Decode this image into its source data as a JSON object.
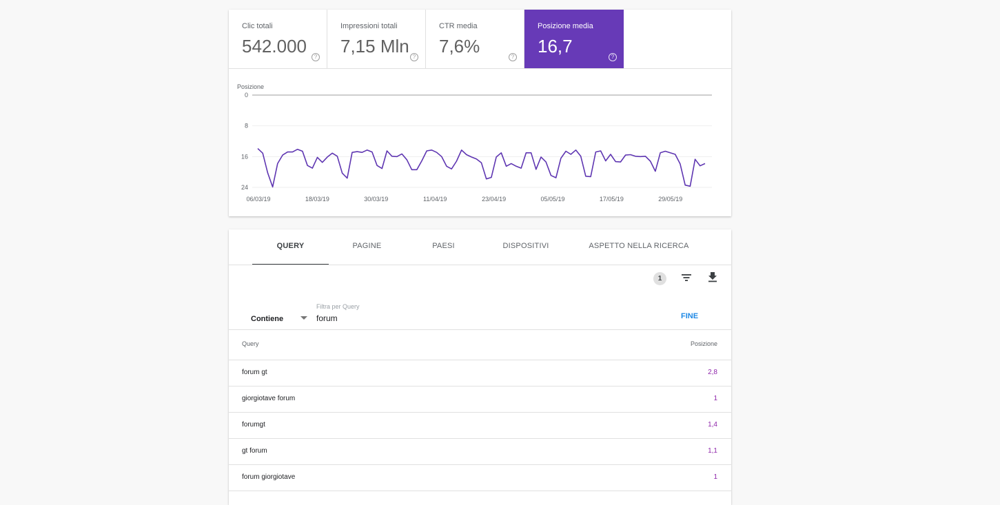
{
  "metrics": [
    {
      "label": "Clic totali",
      "value": "542.000",
      "help": "?"
    },
    {
      "label": "Impressioni totali",
      "value": "7,15 Mln",
      "help": "?"
    },
    {
      "label": "CTR media",
      "value": "7,6%",
      "help": "?"
    },
    {
      "label": "Posizione media",
      "value": "16,7",
      "help": "?"
    }
  ],
  "chart_data": {
    "type": "line",
    "title": "",
    "xlabel": "",
    "ylabel": "Posizione",
    "ylim": [
      0,
      24
    ],
    "y_inverted": true,
    "y_ticks": [
      "0",
      "8",
      "16",
      "24"
    ],
    "x_tick_labels": [
      "06/03/19",
      "18/03/19",
      "30/03/19",
      "11/04/19",
      "23/04/19",
      "05/05/19",
      "17/05/19",
      "29/05/19"
    ],
    "grid": true,
    "color": "#5e35b1",
    "series": [
      {
        "values": [
          13.9,
          15.1,
          20.2,
          23.9,
          17.8,
          15.6,
          14.8,
          14.8,
          14.1,
          14.6,
          18.3,
          19.0,
          16.2,
          17.5,
          16.1,
          15.1,
          15.9,
          20.3,
          21.6,
          14.9,
          14.7,
          14.9,
          14.3,
          14.8,
          18.3,
          19.1,
          14.5,
          15.9,
          16.0,
          15.3,
          16.8,
          19.4,
          19.4,
          17.1,
          14.5,
          14.3,
          14.9,
          16.0,
          18.5,
          19.2,
          17.2,
          14.3,
          15.5,
          16.1,
          16.6,
          17.6,
          21.8,
          21.4,
          16.1,
          15.0,
          18.5,
          17.8,
          18.5,
          19.0,
          15.0,
          15.0,
          19.3,
          16.1,
          17.4,
          20.9,
          21.5,
          16.4,
          14.6,
          15.4,
          14.3,
          15.9,
          21.1,
          21.2,
          14.8,
          14.5,
          17.1,
          15.4,
          17.3,
          17.4,
          15.6,
          15.5,
          15.9,
          16.0,
          15.9,
          17.2,
          19.8,
          15.0,
          14.6,
          15.0,
          15.4,
          17.9,
          23.4,
          23.7,
          16.7,
          18.4,
          17.8
        ]
      }
    ]
  },
  "tabs": [
    "QUERY",
    "PAGINE",
    "PAESI",
    "DISPOSITIVI",
    "ASPETTO NELLA RICERCA"
  ],
  "toolbar": {
    "filter_count": "1",
    "filter_icon": "filter-list-icon",
    "download_icon": "download-icon"
  },
  "filter": {
    "operator": "Contiene",
    "label": "Filtra per Query",
    "value": "forum",
    "done": "FINE"
  },
  "table": {
    "columns": [
      "Query",
      "Posizione"
    ],
    "rows": [
      {
        "query": "forum gt",
        "position": "2,8"
      },
      {
        "query": "giorgiotave forum",
        "position": "1"
      },
      {
        "query": "forumgt",
        "position": "1,4"
      },
      {
        "query": "gt forum",
        "position": "1,1"
      },
      {
        "query": "forum giorgiotave",
        "position": "1"
      }
    ]
  },
  "colors": {
    "accent": "#673ab7",
    "line": "#5e35b1",
    "link": "#1e88e5",
    "position_value": "#8e24aa"
  }
}
